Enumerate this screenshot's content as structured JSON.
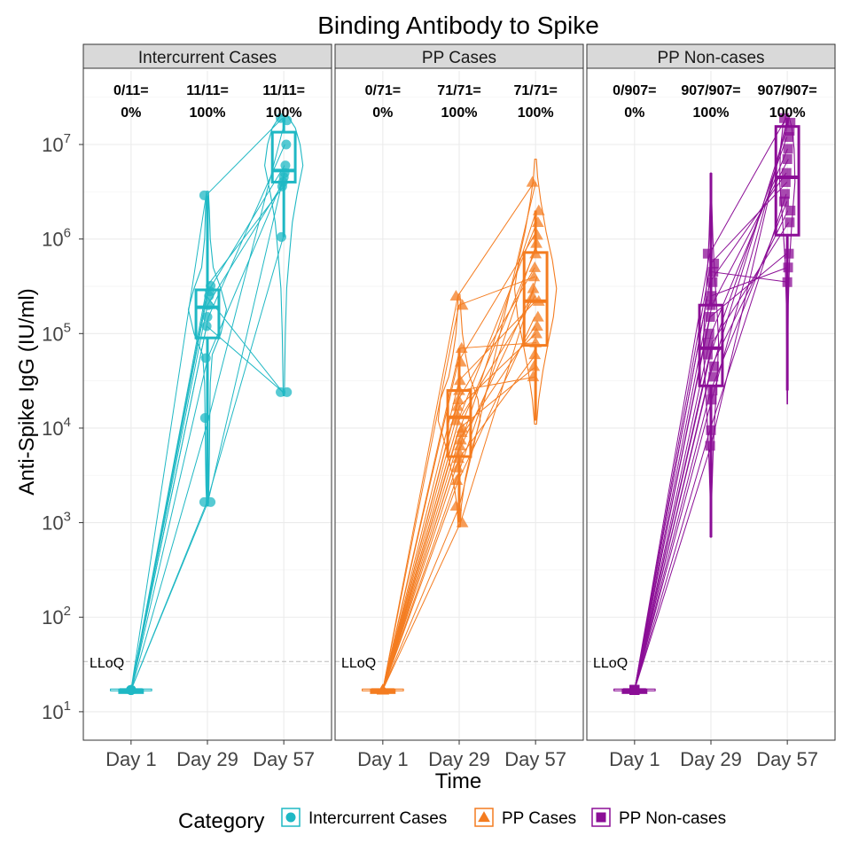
{
  "chart_data": {
    "type": "box-violin-spaghetti",
    "title": "Binding Antibody to Spike",
    "xlabel": "Time",
    "ylabel": "Anti-Spike IgG (IU/ml)",
    "y_scale": "log10",
    "ylim": [
      5,
      60000000
    ],
    "y_ticks": [
      10,
      100,
      1000,
      10000,
      100000,
      1000000,
      10000000
    ],
    "y_tick_labels": [
      {
        "base": "10",
        "exp": "1"
      },
      {
        "base": "10",
        "exp": "2"
      },
      {
        "base": "10",
        "exp": "3"
      },
      {
        "base": "10",
        "exp": "4"
      },
      {
        "base": "10",
        "exp": "5"
      },
      {
        "base": "10",
        "exp": "6"
      },
      {
        "base": "10",
        "exp": "7"
      }
    ],
    "categories": [
      "Day 1",
      "Day 29",
      "Day 57"
    ],
    "lloq": {
      "value": 34,
      "label": "LLoQ"
    },
    "legend": {
      "title": "Category",
      "position": "bottom"
    },
    "grid": true,
    "panels": [
      {
        "name": "Intercurrent Cases",
        "color": "#1fb8c4",
        "marker": "circle",
        "response_counts": [
          "0/11=",
          "11/11=",
          "11/11="
        ],
        "response_pcts": [
          "0%",
          "100%",
          "100%"
        ],
        "violin_max_width": 0.5,
        "points": {
          "Day 1": [
            17,
            17,
            17,
            17,
            17,
            17,
            17,
            17,
            17,
            17,
            17
          ],
          "Day 29": [
            2900000,
            320000,
            280000,
            250000,
            200000,
            150000,
            120000,
            55000,
            12800,
            1650,
            1650
          ],
          "Day 57": [
            19000000,
            18000000,
            10000000,
            6000000,
            5000000,
            4500000,
            4000000,
            3600000,
            1050000,
            24000,
            24000
          ]
        },
        "boxes": [
          {
            "q1": 17,
            "median": 17,
            "q3": 17,
            "whisker_low": 17,
            "whisker_high": 17
          },
          {
            "q1": 90000,
            "median": 190000,
            "q3": 290000,
            "whisker_low": 1650,
            "whisker_high": 2900000
          },
          {
            "q1": 4000000,
            "median": 5300000,
            "q3": 13500000,
            "whisker_low": 1050000,
            "whisker_high": 19000000
          }
        ],
        "violins": [
          {
            "y": [
              16,
              17,
              18
            ],
            "w": [
              1,
              1,
              1
            ]
          },
          {
            "y": [
              1500,
              2500,
              5000,
              12000,
              30000,
              60000,
              100000,
              180000,
              300000,
              500000,
              1000000,
              2000000,
              3200000
            ],
            "w": [
              0.04,
              0.08,
              0.1,
              0.12,
              0.15,
              0.25,
              0.7,
              1,
              0.7,
              0.3,
              0.15,
              0.1,
              0.05
            ]
          },
          {
            "y": [
              22000,
              40000,
              100000,
              300000,
              700000,
              1500000,
              3000000,
              6000000,
              10000000,
              15000000,
              20000000
            ],
            "w": [
              0.03,
              0.05,
              0.08,
              0.15,
              0.3,
              0.45,
              0.7,
              1,
              0.85,
              0.6,
              0.2
            ]
          }
        ]
      },
      {
        "name": "PP Cases",
        "color": "#f47c20",
        "marker": "triangle",
        "response_counts": [
          "0/71=",
          "71/71=",
          "71/71="
        ],
        "response_pcts": [
          "0%",
          "100%",
          "100%"
        ],
        "violin_max_width": 0.55,
        "points": {
          "Day 1": [
            17,
            17,
            17,
            17,
            17,
            17,
            17,
            17,
            17,
            17
          ],
          "Day 29": [
            250000,
            200000,
            70000,
            50000,
            32000,
            25000,
            20000,
            17000,
            14000,
            12000,
            10000,
            9000,
            7500,
            6500,
            5500,
            4800,
            3800,
            2800,
            1500,
            1000
          ],
          "Day 57": [
            4000000,
            2000000,
            1500000,
            1100000,
            900000,
            700000,
            500000,
            400000,
            300000,
            250000,
            220000,
            150000,
            120000,
            100000,
            80000,
            60000,
            45000,
            35000
          ]
        },
        "boxes": [
          {
            "q1": 17,
            "median": 17,
            "q3": 17,
            "whisker_low": 17,
            "whisker_high": 17
          },
          {
            "q1": 5000,
            "median": 13000,
            "q3": 25000,
            "whisker_low": 1000,
            "whisker_high": 70000
          },
          {
            "q1": 75000,
            "median": 220000,
            "q3": 720000,
            "whisker_low": 12000,
            "whisker_high": 2000000
          }
        ],
        "violins": [
          {
            "y": [
              16,
              17,
              18
            ],
            "w": [
              1,
              1,
              1
            ]
          },
          {
            "y": [
              900,
              1500,
              3000,
              6000,
              12000,
              20000,
              35000,
              60000,
              100000,
              170000,
              260000
            ],
            "w": [
              0.05,
              0.1,
              0.3,
              0.6,
              1,
              0.9,
              0.5,
              0.3,
              0.15,
              0.08,
              0.04
            ]
          },
          {
            "y": [
              11000,
              20000,
              40000,
              80000,
              150000,
              300000,
              600000,
              1200000,
              2500000,
              4500000,
              7000000
            ],
            "w": [
              0.05,
              0.15,
              0.35,
              0.6,
              0.85,
              1,
              0.8,
              0.5,
              0.25,
              0.1,
              0.04
            ]
          }
        ]
      },
      {
        "name": "PP Non-cases",
        "color": "#8b0e96",
        "marker": "square",
        "response_counts": [
          "0/907=",
          "907/907=",
          "907/907="
        ],
        "response_pcts": [
          "0%",
          "100%",
          "100%"
        ],
        "violin_max_width": 0.2,
        "points": {
          "Day 1": [
            17,
            17,
            17,
            17,
            17,
            17,
            17,
            17
          ],
          "Day 29": [
            700000,
            550000,
            450000,
            350000,
            250000,
            200000,
            150000,
            100000,
            80000,
            60000,
            45000,
            35000,
            25000,
            20000,
            9500,
            6500
          ],
          "Day 57": [
            19000000,
            17000000,
            14000000,
            12000000,
            9000000,
            7000000,
            5000000,
            4000000,
            3000000,
            2500000,
            2000000,
            1500000,
            700000,
            500000,
            350000
          ]
        },
        "boxes": [
          {
            "q1": 17,
            "median": 17,
            "q3": 17,
            "whisker_low": 17,
            "whisker_high": 17
          },
          {
            "q1": 28000,
            "median": 70000,
            "q3": 200000,
            "whisker_low": 700,
            "whisker_high": 5000000
          },
          {
            "q1": 1100000,
            "median": 4500000,
            "q3": 15500000,
            "whisker_low": 25000,
            "whisker_high": 19000000
          }
        ],
        "violins": [
          {
            "y": [
              16,
              17,
              18
            ],
            "w": [
              1,
              1,
              1
            ]
          },
          {
            "y": [
              700,
              2000,
              6000,
              15000,
              40000,
              80000,
              150000,
              400000,
              1000000,
              2500000,
              5000000
            ],
            "w": [
              0.05,
              0.12,
              0.3,
              0.55,
              0.85,
              1,
              0.85,
              0.5,
              0.25,
              0.1,
              0.04
            ]
          },
          {
            "y": [
              18000,
              60000,
              200000,
              600000,
              1500000,
              4000000,
              9000000,
              15000000,
              20000000
            ],
            "w": [
              0.03,
              0.06,
              0.12,
              0.3,
              0.6,
              1,
              0.9,
              0.6,
              0.2
            ]
          }
        ]
      }
    ]
  }
}
